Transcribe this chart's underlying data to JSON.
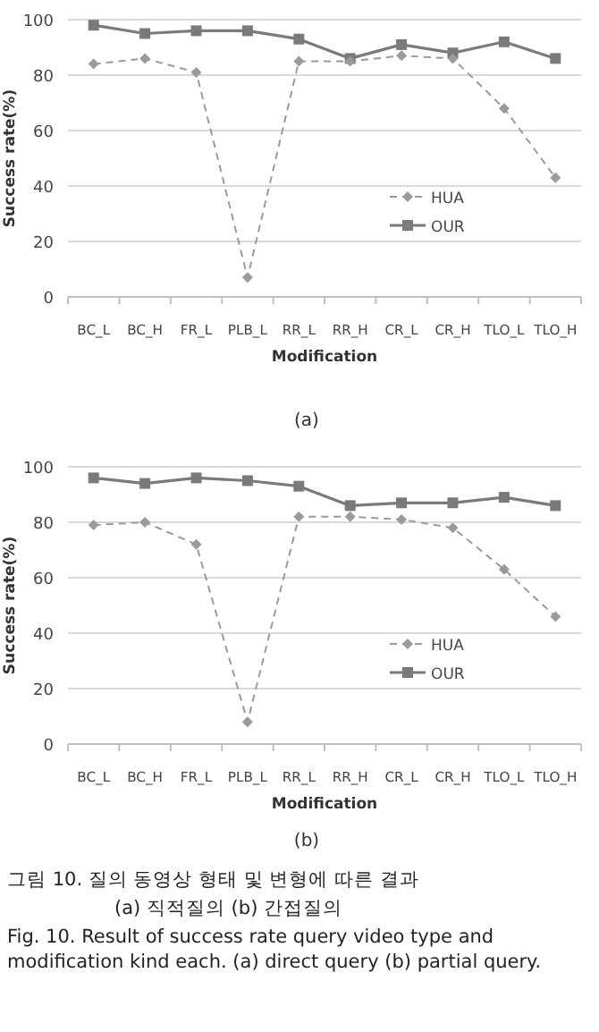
{
  "chart_data": [
    {
      "type": "line",
      "xlabel": "Modification",
      "ylabel": "Success rate(%)",
      "categories": [
        "BC_L",
        "BC_H",
        "FR_L",
        "PLB_L",
        "RR_L",
        "RR_H",
        "CR_L",
        "CR_H",
        "TLO_L",
        "TLO_H"
      ],
      "ylim": [
        0,
        100
      ],
      "yticks": [
        0,
        20,
        40,
        60,
        80,
        100
      ],
      "grid": "y",
      "legend": "right",
      "annotations": [
        "(a)"
      ],
      "series": [
        {
          "name": "HUA",
          "color": "#9a9a9a",
          "marker": "diamond",
          "line_style": "dashed",
          "values": [
            84,
            86,
            81,
            7,
            85,
            85,
            87,
            86,
            68,
            43
          ]
        },
        {
          "name": "OUR",
          "color": "#7a7a7a",
          "marker": "square",
          "line_style": "solid",
          "values": [
            98,
            95,
            96,
            96,
            93,
            86,
            91,
            88,
            92,
            86
          ]
        }
      ]
    },
    {
      "type": "line",
      "xlabel": "Modification",
      "ylabel": "Success rate(%)",
      "categories": [
        "BC_L",
        "BC_H",
        "FR_L",
        "PLB_L",
        "RR_L",
        "RR_H",
        "CR_L",
        "CR_H",
        "TLO_L",
        "TLO_H"
      ],
      "ylim": [
        0,
        100
      ],
      "yticks": [
        0,
        20,
        40,
        60,
        80,
        100
      ],
      "grid": "y",
      "legend": "right",
      "annotations": [
        "(b)",
        "그림 10. 질의 동영상 형태 및 변형에 따른 결과",
        "(a) 직적질의 (b) 간접질의",
        "Fig. 10. Result of success rate query video type and modification kind each. (a) direct query (b) partial query."
      ],
      "series": [
        {
          "name": "HUA",
          "color": "#9a9a9a",
          "marker": "diamond",
          "line_style": "dashed",
          "values": [
            79,
            80,
            72,
            8,
            82,
            82,
            81,
            78,
            63,
            46
          ]
        },
        {
          "name": "OUR",
          "color": "#7a7a7a",
          "marker": "square",
          "line_style": "solid",
          "values": [
            96,
            94,
            96,
            95,
            93,
            86,
            87,
            87,
            89,
            86
          ]
        }
      ]
    }
  ]
}
